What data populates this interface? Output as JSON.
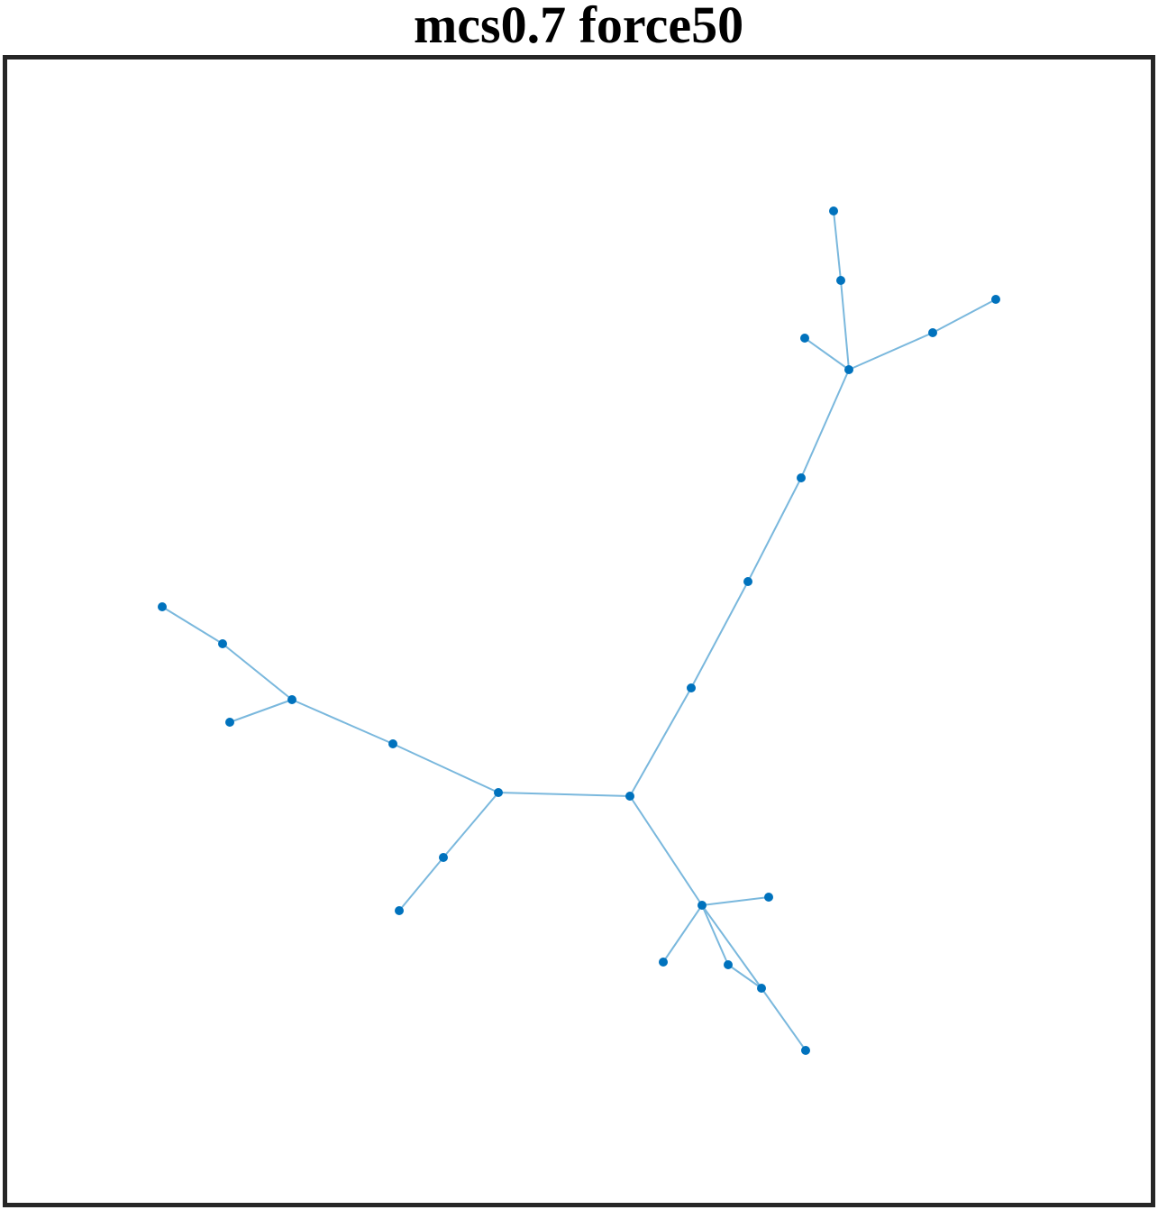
{
  "title": "mcs0.7 force50"
}
